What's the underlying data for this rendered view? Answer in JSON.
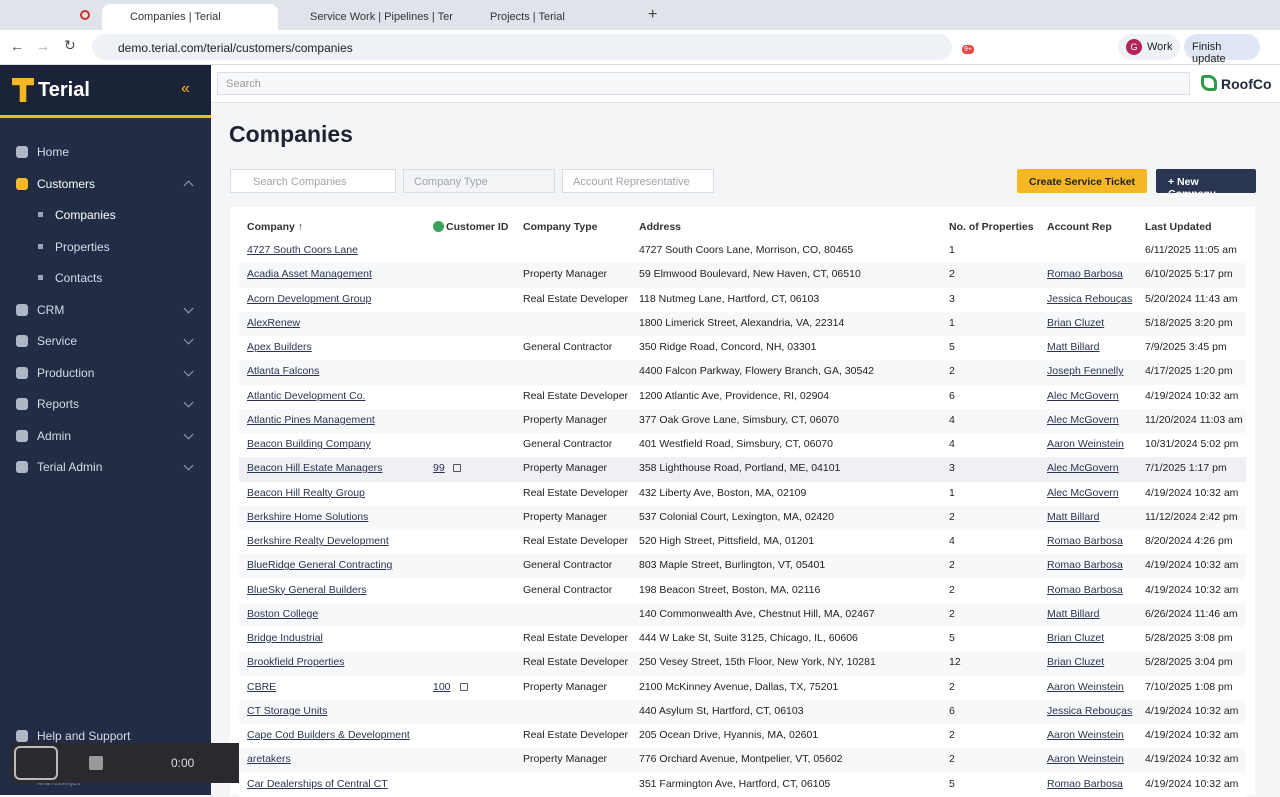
{
  "browser": {
    "tabs": [
      "Companies | Terial",
      "Service Work | Pipelines | Ter",
      "Projects | Terial"
    ],
    "url": "demo.terial.com/terial/customers/companies",
    "extension_badge": "9+",
    "profile_initial": "G",
    "profile": "Work",
    "update_button": "Finish update"
  },
  "sidebar": {
    "brand": "Terial",
    "nav": [
      "Home",
      "Customers",
      "CRM",
      "Service",
      "Production",
      "Reports",
      "Admin",
      "Terial Admin"
    ],
    "subnav": [
      "Companies",
      "Properties",
      "Contacts"
    ],
    "help": "Help and Support",
    "footer_org": "Terial RoofingCo"
  },
  "header": {
    "search_placeholder": "Search",
    "org_logo": "RoofCo"
  },
  "page": {
    "title": "Companies",
    "filters": [
      "Search Companies",
      "Company Type",
      "Account Representative"
    ],
    "buttons": [
      "Create Service Ticket",
      "+ New Company"
    ]
  },
  "table": {
    "columns": [
      "Company",
      "Customer ID",
      "Company Type",
      "Address",
      "No. of Properties",
      "Account Rep",
      "Last Updated"
    ],
    "rows": [
      [
        "4727 South Coors Lane",
        null,
        null,
        "4727 South Coors Lane, Morrison, CO, 80465",
        1,
        null,
        "6/11/2025 11:05 am"
      ],
      [
        "Acadia Asset Management",
        null,
        "Property Manager",
        "59 Elmwood Boulevard, New Haven, CT, 06510",
        2,
        "Romao Barbosa",
        "6/10/2025 5:17 pm"
      ],
      [
        "Acorn Development Group",
        null,
        "Real Estate Developer",
        "118 Nutmeg Lane, Hartford, CT, 06103",
        3,
        "Jessica Rebouças",
        "5/20/2024 11:43 am"
      ],
      [
        "AlexRenew",
        null,
        null,
        "1800 Limerick Street, Alexandria, VA, 22314",
        1,
        "Brian Cluzet",
        "5/18/2025 3:20 pm"
      ],
      [
        "Apex Builders",
        null,
        "General Contractor",
        "350 Ridge Road, Concord, NH, 03301",
        5,
        "Matt Billard",
        "7/9/2025 3:45 pm"
      ],
      [
        "Atlanta Falcons",
        null,
        null,
        "4400 Falcon Parkway, Flowery Branch, GA, 30542",
        2,
        "Joseph Fennelly",
        "4/17/2025 1:20 pm"
      ],
      [
        "Atlantic Development Co.",
        null,
        "Real Estate Developer",
        "1200 Atlantic Ave, Providence, RI, 02904",
        6,
        "Alec McGovern",
        "4/19/2024 10:32 am"
      ],
      [
        "Atlantic Pines Management",
        null,
        "Property Manager",
        "377 Oak Grove Lane, Simsbury, CT, 06070",
        4,
        "Alec McGovern",
        "11/20/2024 11:03 am"
      ],
      [
        "Beacon Building Company",
        null,
        "General Contractor",
        "401 Westfield Road, Simsbury, CT, 06070",
        4,
        "Aaron Weinstein",
        "10/31/2024 5:02 pm"
      ],
      [
        "Beacon Hill Estate Managers",
        99,
        "Property Manager",
        "358 Lighthouse Road, Portland, ME, 04101",
        3,
        "Alec McGovern",
        "7/1/2025 1:17 pm"
      ],
      [
        "Beacon Hill Realty Group",
        null,
        "Real Estate Developer",
        "432 Liberty Ave, Boston, MA, 02109",
        1,
        "Alec McGovern",
        "4/19/2024 10:32 am"
      ],
      [
        "Berkshire Home Solutions",
        null,
        "Property Manager",
        "537 Colonial Court, Lexington, MA, 02420",
        2,
        "Matt Billard",
        "11/12/2024 2:42 pm"
      ],
      [
        "Berkshire Realty Development",
        null,
        "Real Estate Developer",
        "520 High Street, Pittsfield, MA, 01201",
        4,
        "Romao Barbosa",
        "8/20/2024 4:26 pm"
      ],
      [
        "BlueRidge General Contracting",
        null,
        "General Contractor",
        "803 Maple Street, Burlington, VT, 05401",
        2,
        "Romao Barbosa",
        "4/19/2024 10:32 am"
      ],
      [
        "BlueSky General Builders",
        null,
        "General Contractor",
        "198 Beacon Street, Boston, MA, 02116",
        2,
        "Romao Barbosa",
        "4/19/2024 10:32 am"
      ],
      [
        "Boston College",
        null,
        null,
        "140 Commonwealth Ave, Chestnut Hill, MA, 02467",
        2,
        "Matt Billard",
        "6/26/2024 11:46 am"
      ],
      [
        "Bridge Industrial",
        null,
        "Real Estate Developer",
        "444 W Lake St, Suite 3125, Chicago, IL, 60606",
        5,
        "Brian Cluzet",
        "5/28/2025 3:08 pm"
      ],
      [
        "Brookfield Properties",
        null,
        "Real Estate Developer",
        "250 Vesey Street, 15th Floor, New York, NY, 10281",
        12,
        "Brian Cluzet",
        "5/28/2025 3:04 pm"
      ],
      [
        "CBRE",
        100,
        "Property Manager",
        "2100 McKinney Avenue, Dallas, TX, 75201",
        2,
        "Aaron Weinstein",
        "7/10/2025 1:08 pm"
      ],
      [
        "CT Storage Units",
        null,
        null,
        "440 Asylum St, Hartford, CT, 06103",
        6,
        "Jessica Rebouças",
        "4/19/2024 10:32 am"
      ],
      [
        "Cape Cod Builders & Development",
        null,
        "Real Estate Developer",
        "205 Ocean Drive, Hyannis, MA, 02601",
        2,
        "Aaron Weinstein",
        "4/19/2024 10:32 am"
      ],
      [
        "aretakers",
        null,
        "Property Manager",
        "776 Orchard Avenue, Montpelier, VT, 05602",
        2,
        "Aaron Weinstein",
        "4/19/2024 10:32 am"
      ],
      [
        "Car Dealerships of Central CT",
        null,
        null,
        "351 Farmington Ave, Hartford, CT, 06105",
        5,
        "Romao Barbosa",
        "4/19/2024 10:32 am"
      ]
    ]
  },
  "recorder": {
    "time": "0:00"
  }
}
